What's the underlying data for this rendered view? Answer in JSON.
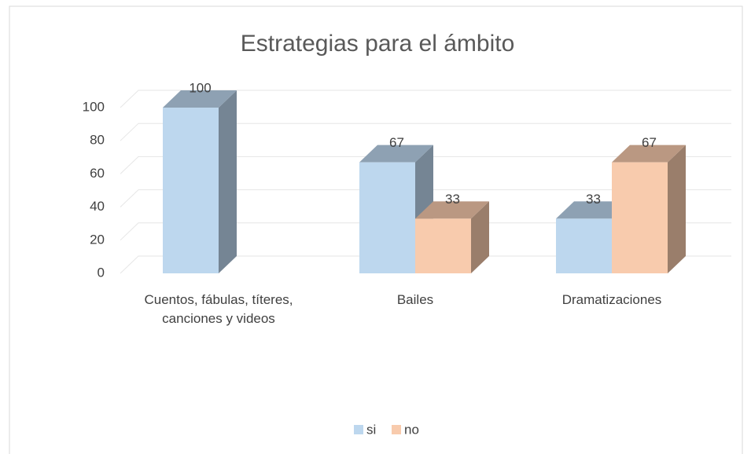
{
  "chart_data": {
    "type": "bar3d",
    "title": "Estrategias para el ámbito",
    "categories": [
      "Cuentos, fábulas, títeres, canciones y videos",
      "Bailes",
      "Dramatizaciones"
    ],
    "series": [
      {
        "name": "si",
        "color": "#bdd7ee",
        "values": [
          100,
          67,
          33
        ]
      },
      {
        "name": "no",
        "color": "#f8cbad",
        "values": [
          null,
          33,
          67
        ]
      }
    ],
    "ylim": [
      0,
      100
    ],
    "yticks": [
      0,
      20,
      40,
      60,
      80,
      100
    ],
    "grid": true,
    "legend": "bottom"
  }
}
